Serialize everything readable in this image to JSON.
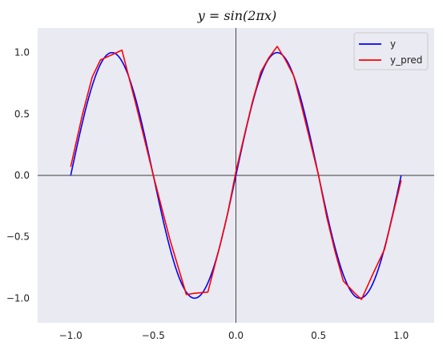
{
  "chart_data": {
    "type": "line",
    "title": "y = sin(2πx)",
    "xlabel": "",
    "ylabel": "",
    "xlim": [
      -1.2,
      1.2
    ],
    "ylim": [
      -1.2,
      1.2
    ],
    "xticks": [
      -1.0,
      -0.5,
      0.0,
      0.5,
      1.0
    ],
    "xtick_labels": [
      "−1.0",
      "−0.5",
      "0.0",
      "0.5",
      "1.0"
    ],
    "yticks": [
      -1.0,
      -0.5,
      0.0,
      0.5,
      1.0
    ],
    "ytick_labels": [
      "−1.0",
      "−0.5",
      "0.0",
      "0.5",
      "1.0"
    ],
    "grid": false,
    "legend_position": "top-right",
    "axis_lines_at_zero": true,
    "background_color": "#eaeaf2",
    "series": [
      {
        "name": "y",
        "color": "#0000ff",
        "function": "sin(2*pi*x)",
        "x_range": [
          -1.0,
          1.0
        ]
      },
      {
        "name": "y_pred",
        "color": "#ff0000",
        "x": [
          -1.0,
          -0.93,
          -0.87,
          -0.82,
          -0.69,
          -0.6,
          -0.5,
          -0.4,
          -0.3,
          -0.25,
          -0.17,
          -0.1,
          -0.05,
          0.0,
          0.05,
          0.1,
          0.15,
          0.2,
          0.25,
          0.3,
          0.35,
          0.4,
          0.5,
          0.55,
          0.6,
          0.65,
          0.72,
          0.76,
          0.78,
          0.83,
          0.9,
          1.0
        ],
        "y": [
          0.07,
          0.49,
          0.8,
          0.94,
          1.02,
          0.55,
          0.0,
          -0.52,
          -0.97,
          -0.96,
          -0.95,
          -0.59,
          -0.31,
          0.03,
          0.32,
          0.6,
          0.84,
          0.96,
          1.05,
          0.94,
          0.81,
          0.55,
          0.0,
          -0.34,
          -0.62,
          -0.86,
          -0.96,
          -1.01,
          -0.95,
          -0.8,
          -0.6,
          -0.04
        ]
      }
    ]
  }
}
